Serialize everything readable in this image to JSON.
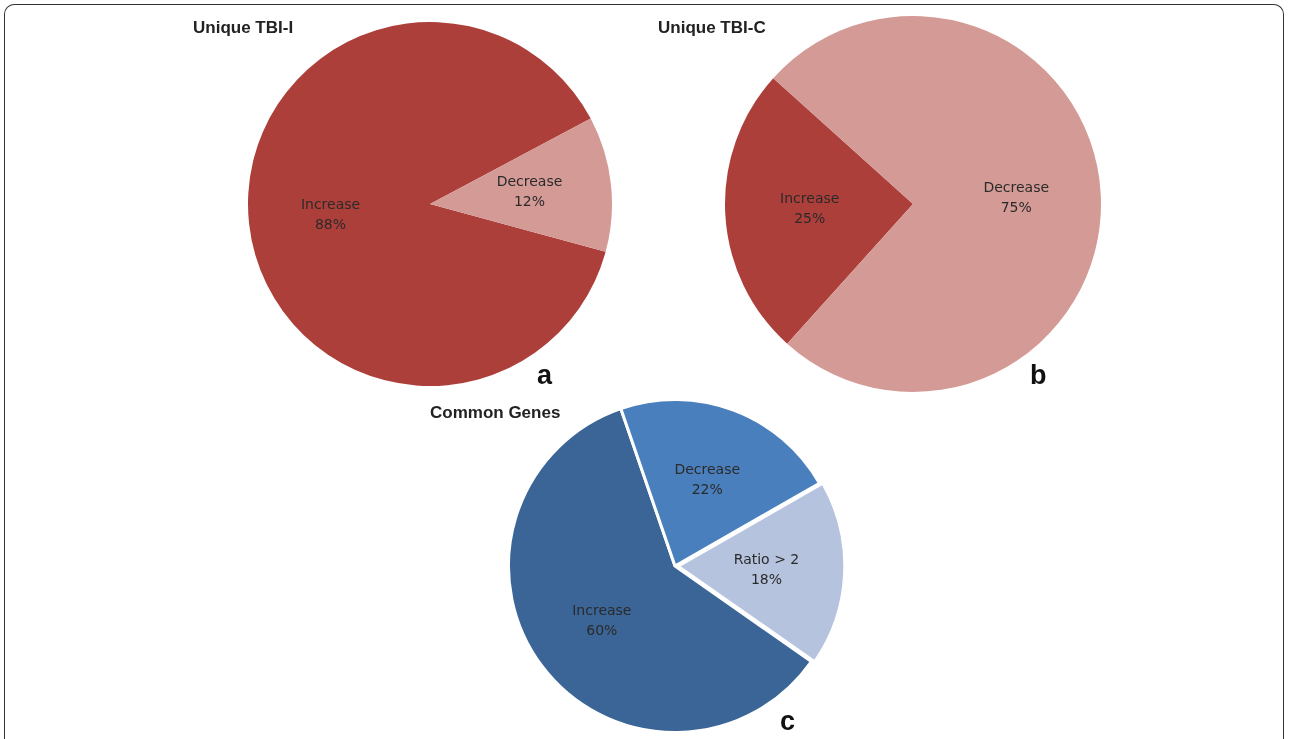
{
  "chart_data": [
    {
      "type": "pie",
      "title": "Unique TBI-I",
      "categories": [
        "Increase",
        "Decrease"
      ],
      "values": [
        88,
        12
      ],
      "colors": [
        "#ad3f3a",
        "#d49a95"
      ],
      "value_labels": [
        "88%",
        "12%"
      ],
      "annotations": [
        "a"
      ]
    },
    {
      "type": "pie",
      "title": "Unique TBI-C",
      "categories": [
        "Increase",
        "Decrease"
      ],
      "values": [
        25,
        75
      ],
      "colors": [
        "#ad3f3a",
        "#d49a95"
      ],
      "value_labels": [
        "25%",
        "75%"
      ],
      "annotations": [
        "b"
      ]
    },
    {
      "type": "pie",
      "title": "Common Genes",
      "categories": [
        "Increase",
        "Decrease",
        "Ratio > 2"
      ],
      "values": [
        60,
        22,
        18
      ],
      "colors": [
        "#3a6596",
        "#4a7fbd",
        "#b6c3de"
      ],
      "value_labels": [
        "60%",
        "22%",
        "18%"
      ],
      "annotations": [
        "c"
      ]
    }
  ]
}
